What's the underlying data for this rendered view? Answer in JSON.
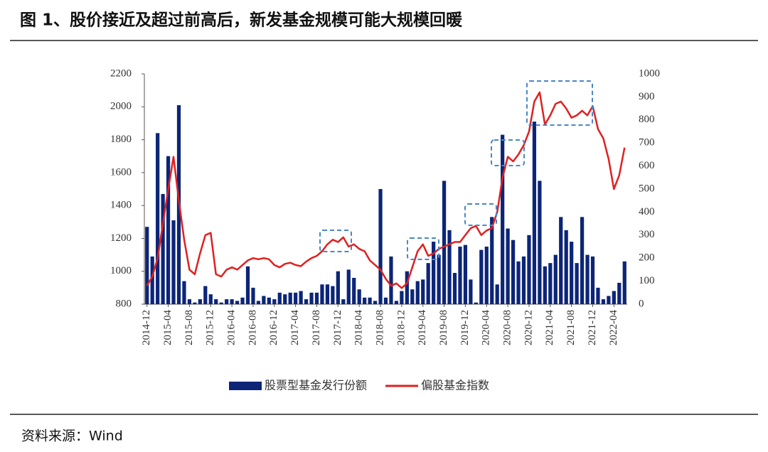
{
  "figure_title": "图 1、股价接近及超过前高后，新发基金规模可能大规模回暖",
  "source": "资料来源：Wind",
  "chart_data": {
    "type": "bar-line",
    "categories": [
      "2014-12",
      null,
      null,
      null,
      "2015-04",
      null,
      null,
      null,
      "2015-08",
      null,
      null,
      null,
      "2015-12",
      null,
      null,
      null,
      "2016-04",
      null,
      null,
      null,
      "2016-08",
      null,
      null,
      null,
      "2016-12",
      null,
      null,
      null,
      "2017-04",
      null,
      null,
      null,
      "2017-08",
      null,
      null,
      null,
      "2017-12",
      null,
      null,
      null,
      "2018-04",
      null,
      null,
      null,
      "2018-08",
      null,
      null,
      null,
      "2018-12",
      null,
      null,
      null,
      "2019-04",
      null,
      null,
      null,
      "2019-08",
      null,
      null,
      null,
      "2019-12",
      null,
      null,
      null,
      "2020-04",
      null,
      null,
      null,
      "2020-08",
      null,
      null,
      null,
      "2020-12",
      null,
      null,
      null,
      "2021-04",
      null,
      null,
      null,
      "2021-08",
      null,
      null,
      null,
      "2021-12",
      null,
      null,
      null,
      "2022-04",
      null,
      null
    ],
    "series": [
      {
        "name": "股票型基金发行份额",
        "type": "bar",
        "color": "#0c2577",
        "values": [
          1270,
          1090,
          1840,
          1470,
          1700,
          1310,
          2010,
          940,
          830,
          810,
          830,
          910,
          860,
          830,
          810,
          830,
          830,
          820,
          840,
          1030,
          900,
          820,
          850,
          840,
          830,
          870,
          860,
          870,
          870,
          880,
          830,
          870,
          870,
          920,
          920,
          910,
          1000,
          830,
          1010,
          960,
          890,
          840,
          840,
          820,
          1500,
          840,
          1090,
          820,
          880,
          1000,
          890,
          940,
          950,
          1050,
          1180,
          1100,
          1550,
          1250,
          990,
          1150,
          1160,
          950,
          810,
          1130,
          1150,
          1330,
          920,
          1830,
          1260,
          1190,
          1060,
          1090,
          1220,
          1910,
          1550,
          1030,
          1050,
          1100,
          1330,
          1250,
          1180,
          1050,
          1330,
          1100,
          1090,
          900,
          830,
          850,
          880,
          930,
          1060
        ]
      },
      {
        "name": "偏股基金指数",
        "type": "line",
        "color": "#e02020",
        "axis": "y2",
        "values": [
          80,
          120,
          200,
          350,
          500,
          640,
          450,
          280,
          150,
          130,
          220,
          300,
          310,
          130,
          120,
          150,
          160,
          150,
          170,
          190,
          200,
          195,
          200,
          195,
          170,
          160,
          175,
          180,
          170,
          165,
          185,
          200,
          210,
          230,
          260,
          280,
          270,
          290,
          250,
          260,
          240,
          230,
          190,
          170,
          150,
          110,
          80,
          90,
          70,
          90,
          160,
          230,
          260,
          210,
          220,
          240,
          250,
          260,
          270,
          270,
          300,
          330,
          340,
          300,
          320,
          330,
          400,
          550,
          640,
          620,
          650,
          690,
          750,
          880,
          920,
          780,
          820,
          870,
          880,
          850,
          810,
          820,
          840,
          820,
          860,
          760,
          720,
          630,
          500,
          560,
          680
        ]
      }
    ],
    "ylim": [
      800,
      2200
    ],
    "yticks": [
      800,
      1000,
      1200,
      1400,
      1600,
      1800,
      2000,
      2200
    ],
    "y2lim": [
      0,
      1000
    ],
    "y2ticks": [
      0,
      100,
      200,
      300,
      400,
      500,
      600,
      700,
      800,
      900,
      1000
    ],
    "legend": "bottom"
  }
}
